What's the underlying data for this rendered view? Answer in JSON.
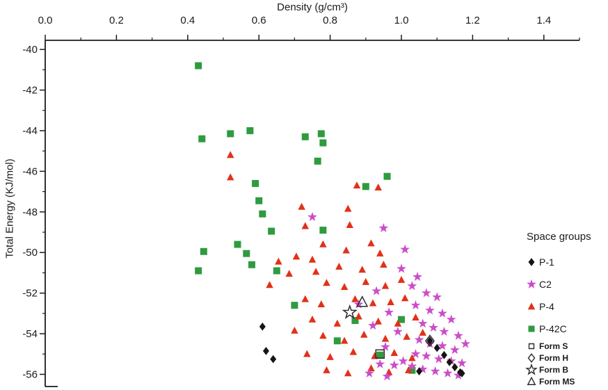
{
  "chart_data": {
    "type": "scatter",
    "title": "",
    "xlabel": "Density (g/cm³)",
    "ylabel": "Total Energy (KJ/mol)",
    "xlim": [
      0.0,
      1.5
    ],
    "ylim": [
      -56.6,
      -39.55
    ],
    "xticks": [
      0.0,
      0.2,
      0.4,
      0.6,
      0.8,
      1.0,
      1.2,
      1.4
    ],
    "xminor": [
      0.1,
      0.3,
      0.5,
      0.7,
      0.9,
      1.1,
      1.3,
      1.5
    ],
    "yticks": [
      -40,
      -42,
      -44,
      -46,
      -48,
      -50,
      -52,
      -54,
      -56
    ],
    "yminor": [
      -41,
      -43,
      -45,
      -47,
      -49,
      -51,
      -53,
      -55
    ],
    "grid": false,
    "legend_title": "Space groups",
    "legend_position": "right",
    "axis_color": "#1a1a1a",
    "series": [
      {
        "name": "P-1",
        "marker": "diamond",
        "color": "#151515",
        "fill": true,
        "size": 4.5,
        "points": [
          [
            0.61,
            -53.65
          ],
          [
            0.62,
            -54.85
          ],
          [
            0.64,
            -55.25
          ],
          [
            1.08,
            -54.35
          ],
          [
            1.1,
            -54.7
          ],
          [
            1.12,
            -55.05
          ],
          [
            1.135,
            -55.4
          ],
          [
            1.15,
            -55.65
          ],
          [
            1.165,
            -55.9
          ],
          [
            1.05,
            -55.85
          ],
          [
            1.17,
            -55.95
          ]
        ]
      },
      {
        "name": "C2",
        "marker": "star",
        "color": "#cb4ec9",
        "fill": true,
        "size": 5,
        "points": [
          [
            0.75,
            -48.25
          ],
          [
            0.95,
            -48.8
          ],
          [
            1.01,
            -49.85
          ],
          [
            1.0,
            -50.8
          ],
          [
            1.045,
            -51.2
          ],
          [
            0.93,
            -51.9
          ],
          [
            1.03,
            -51.65
          ],
          [
            1.07,
            -52.0
          ],
          [
            1.1,
            -52.2
          ],
          [
            1.04,
            -52.6
          ],
          [
            1.08,
            -52.85
          ],
          [
            1.115,
            -53.0
          ],
          [
            1.14,
            -53.3
          ],
          [
            0.965,
            -52.95
          ],
          [
            1.06,
            -53.5
          ],
          [
            1.09,
            -53.7
          ],
          [
            1.12,
            -53.9
          ],
          [
            1.16,
            -54.1
          ],
          [
            0.99,
            -53.9
          ],
          [
            1.05,
            -54.3
          ],
          [
            1.08,
            -54.5
          ],
          [
            1.115,
            -54.6
          ],
          [
            1.15,
            -54.8
          ],
          [
            1.18,
            -54.5
          ],
          [
            0.955,
            -54.65
          ],
          [
            1.04,
            -55.0
          ],
          [
            1.07,
            -55.1
          ],
          [
            1.105,
            -55.25
          ],
          [
            1.14,
            -55.35
          ],
          [
            1.17,
            -55.45
          ],
          [
            1.005,
            -55.35
          ],
          [
            1.03,
            -55.6
          ],
          [
            1.06,
            -55.75
          ],
          [
            1.095,
            -55.85
          ],
          [
            1.13,
            -55.95
          ],
          [
            1.16,
            -56.05
          ],
          [
            0.98,
            -55.55
          ],
          [
            0.94,
            -55.5
          ],
          [
            0.91,
            -55.95
          ],
          [
            0.96,
            -56.1
          ],
          [
            0.88,
            -52.55
          ],
          [
            0.92,
            -53.6
          ]
        ]
      },
      {
        "name": "P-4",
        "marker": "triangle",
        "color": "#e23119",
        "fill": true,
        "size": 5,
        "points": [
          [
            0.52,
            -45.2
          ],
          [
            0.875,
            -46.7
          ],
          [
            0.935,
            -46.8
          ],
          [
            0.72,
            -47.75
          ],
          [
            0.85,
            -47.85
          ],
          [
            0.73,
            -48.7
          ],
          [
            0.855,
            -48.65
          ],
          [
            0.78,
            -49.6
          ],
          [
            0.655,
            -50.45
          ],
          [
            0.705,
            -50.2
          ],
          [
            0.75,
            -50.35
          ],
          [
            0.845,
            -49.9
          ],
          [
            0.915,
            -49.55
          ],
          [
            0.94,
            -50.05
          ],
          [
            0.825,
            -50.7
          ],
          [
            0.89,
            -50.85
          ],
          [
            0.95,
            -50.6
          ],
          [
            0.79,
            -51.5
          ],
          [
            0.84,
            -51.7
          ],
          [
            0.9,
            -51.45
          ],
          [
            0.955,
            -51.65
          ],
          [
            1.0,
            -51.35
          ],
          [
            0.73,
            -52.3
          ],
          [
            0.775,
            -52.55
          ],
          [
            0.87,
            -52.3
          ],
          [
            0.92,
            -52.5
          ],
          [
            0.97,
            -52.45
          ],
          [
            1.01,
            -52.25
          ],
          [
            0.75,
            -53.3
          ],
          [
            0.82,
            -53.5
          ],
          [
            0.88,
            -53.15
          ],
          [
            0.935,
            -53.4
          ],
          [
            0.99,
            -53.5
          ],
          [
            1.04,
            -53.2
          ],
          [
            0.78,
            -54.1
          ],
          [
            0.84,
            -54.35
          ],
          [
            0.895,
            -54.05
          ],
          [
            0.955,
            -54.25
          ],
          [
            1.015,
            -54.15
          ],
          [
            1.06,
            -53.95
          ],
          [
            0.735,
            -55.0
          ],
          [
            0.8,
            -55.15
          ],
          [
            0.865,
            -54.9
          ],
          [
            0.925,
            -55.1
          ],
          [
            0.98,
            -54.95
          ],
          [
            1.03,
            -55.2
          ],
          [
            0.79,
            -55.8
          ],
          [
            0.85,
            -55.95
          ],
          [
            0.915,
            -55.7
          ],
          [
            0.965,
            -55.9
          ],
          [
            1.02,
            -55.8
          ],
          [
            0.63,
            -51.6
          ],
          [
            0.685,
            -51.05
          ],
          [
            0.7,
            -53.85
          ],
          [
            0.76,
            -50.95
          ],
          [
            0.52,
            -46.3
          ]
        ]
      },
      {
        "name": "P-42C",
        "marker": "square",
        "color": "#2e9b3f",
        "fill": true,
        "size": 5,
        "points": [
          [
            0.43,
            -40.8
          ],
          [
            0.44,
            -44.4
          ],
          [
            0.52,
            -44.15
          ],
          [
            0.575,
            -44.0
          ],
          [
            0.73,
            -44.3
          ],
          [
            0.775,
            -44.15
          ],
          [
            0.78,
            -44.6
          ],
          [
            0.765,
            -45.5
          ],
          [
            0.59,
            -46.6
          ],
          [
            0.96,
            -46.25
          ],
          [
            0.9,
            -46.75
          ],
          [
            0.6,
            -47.45
          ],
          [
            0.61,
            -48.1
          ],
          [
            0.635,
            -48.95
          ],
          [
            0.78,
            -48.9
          ],
          [
            0.54,
            -49.6
          ],
          [
            0.445,
            -49.95
          ],
          [
            0.565,
            -50.05
          ],
          [
            0.58,
            -50.6
          ],
          [
            0.43,
            -50.9
          ],
          [
            0.65,
            -50.9
          ],
          [
            0.7,
            -52.6
          ],
          [
            1.0,
            -53.3
          ],
          [
            0.87,
            -53.35
          ],
          [
            0.82,
            -54.35
          ],
          [
            0.94,
            -55.05
          ],
          [
            1.03,
            -55.8
          ]
        ]
      },
      {
        "name": "Form S",
        "marker": "square",
        "color": "#2b2b2b",
        "fill": false,
        "size": 6,
        "points": [
          [
            0.94,
            -55.0
          ]
        ]
      },
      {
        "name": "Form H",
        "marker": "diamond",
        "color": "#2b2b2b",
        "fill": false,
        "size": 6,
        "points": [
          [
            1.08,
            -54.35
          ]
        ]
      },
      {
        "name": "Form B",
        "marker": "star",
        "color": "#2b2b2b",
        "fill": false,
        "size": 6.5,
        "points": [
          [
            0.855,
            -52.95
          ]
        ]
      },
      {
        "name": "Form MS",
        "marker": "triangle",
        "color": "#2b2b2b",
        "fill": false,
        "size": 7,
        "points": [
          [
            0.89,
            -52.45
          ]
        ]
      }
    ]
  }
}
